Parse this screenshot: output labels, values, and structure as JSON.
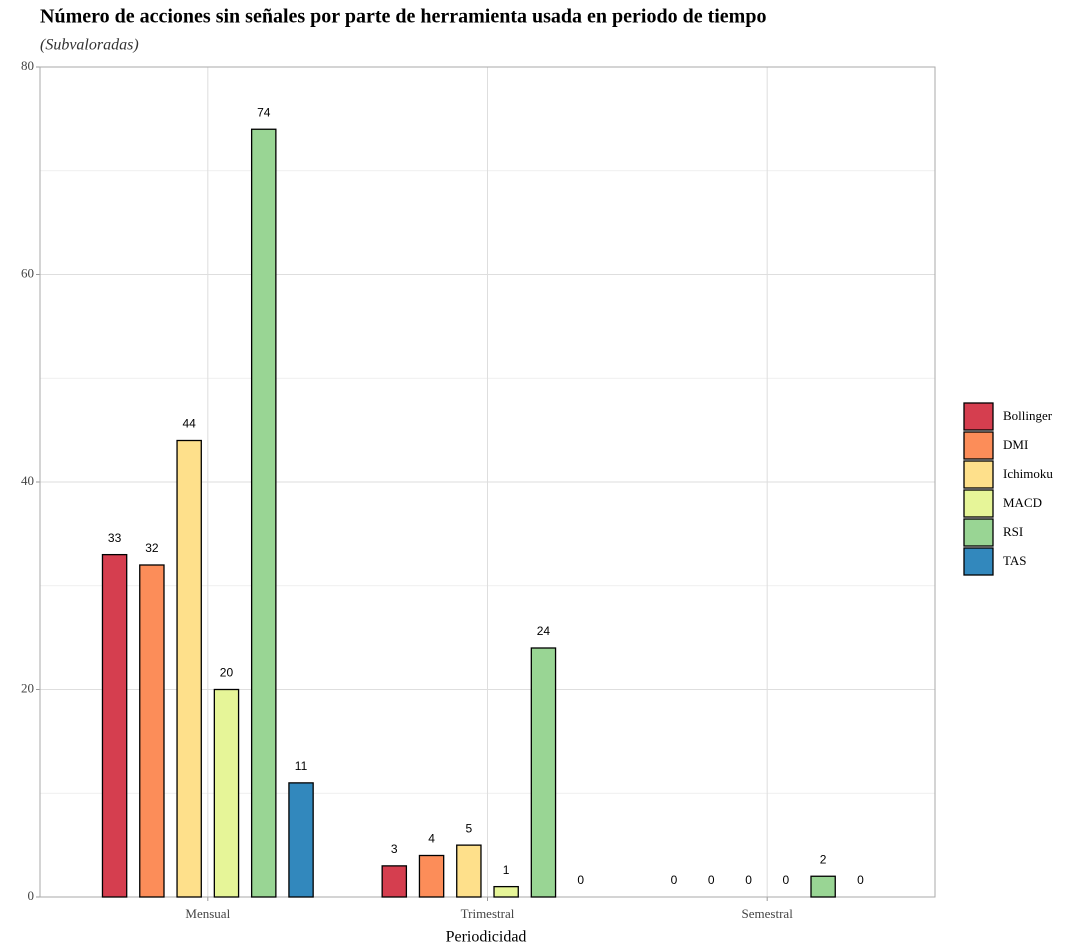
{
  "chart_data": {
    "type": "bar",
    "title": "Número de acciones sin señales por parte de herramienta usada en periodo de tiempo",
    "subtitle": "(Subvaloradas)",
    "x_label": "Periodicidad",
    "categories": [
      "Mensual",
      "Trimestral",
      "Semestral"
    ],
    "series": [
      {
        "name": "Bollinger",
        "color": "#d53e4f",
        "values": [
          33,
          3,
          0
        ]
      },
      {
        "name": "DMI",
        "color": "#fc8d59",
        "values": [
          32,
          4,
          0
        ]
      },
      {
        "name": "Ichimoku",
        "color": "#fee08b",
        "values": [
          44,
          5,
          0
        ]
      },
      {
        "name": "MACD",
        "color": "#e6f598",
        "values": [
          20,
          1,
          0
        ]
      },
      {
        "name": "RSI",
        "color": "#99d594",
        "values": [
          74,
          24,
          2
        ]
      },
      {
        "name": "TAS",
        "color": "#3288bd",
        "values": [
          11,
          0,
          0
        ]
      }
    ],
    "ylim": [
      0,
      80
    ],
    "yticks": [
      0,
      20,
      40,
      60,
      80
    ],
    "grid": true,
    "legend": "right"
  }
}
